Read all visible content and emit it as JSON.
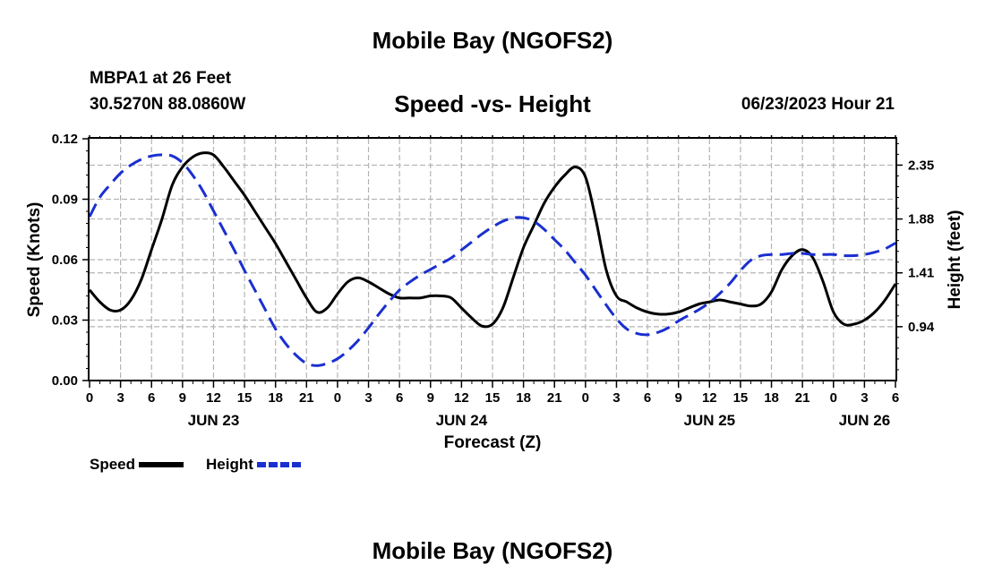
{
  "title_top": "Mobile Bay (NGOFS2)",
  "title_bottom": "Mobile Bay (NGOFS2)",
  "station": "MBPA1 at 26 Feet",
  "coordinates": "30.5270N  88.0860W",
  "subtitle": "Speed -vs- Height",
  "datetime": "06/23/2023 Hour 21",
  "colors": {
    "speed": "#000000",
    "height": "#1a2fd0",
    "grid": "#b4b4b4"
  },
  "legend": [
    {
      "label": "Speed",
      "style": "solid",
      "color": "#000000"
    },
    {
      "label": "Height",
      "style": "dashed",
      "color": "#1a2fd0"
    }
  ],
  "chart_data": {
    "type": "line",
    "xlabel": "Forecast (Z)",
    "ylabel": "Speed (Knots)",
    "y2label": "Height (feet)",
    "x_unit": "hours from 00Z JUN 23",
    "xlim": [
      0,
      78
    ],
    "ylim": [
      0,
      0.12
    ],
    "y2lim": [
      0.47,
      2.58
    ],
    "x_ticks": [
      {
        "x": 0,
        "label": "0"
      },
      {
        "x": 3,
        "label": "3"
      },
      {
        "x": 6,
        "label": "6"
      },
      {
        "x": 9,
        "label": "9"
      },
      {
        "x": 12,
        "label": "12"
      },
      {
        "x": 15,
        "label": "15"
      },
      {
        "x": 18,
        "label": "18"
      },
      {
        "x": 21,
        "label": "21"
      },
      {
        "x": 24,
        "label": "0"
      },
      {
        "x": 27,
        "label": "3"
      },
      {
        "x": 30,
        "label": "6"
      },
      {
        "x": 33,
        "label": "9"
      },
      {
        "x": 36,
        "label": "12"
      },
      {
        "x": 39,
        "label": "15"
      },
      {
        "x": 42,
        "label": "18"
      },
      {
        "x": 45,
        "label": "21"
      },
      {
        "x": 48,
        "label": "0"
      },
      {
        "x": 51,
        "label": "3"
      },
      {
        "x": 54,
        "label": "6"
      },
      {
        "x": 57,
        "label": "9"
      },
      {
        "x": 60,
        "label": "12"
      },
      {
        "x": 63,
        "label": "15"
      },
      {
        "x": 66,
        "label": "18"
      },
      {
        "x": 69,
        "label": "21"
      },
      {
        "x": 72,
        "label": "0"
      },
      {
        "x": 75,
        "label": "3"
      },
      {
        "x": 78,
        "label": "6"
      }
    ],
    "date_labels": [
      {
        "x": 12,
        "label": "JUN 23"
      },
      {
        "x": 36,
        "label": "JUN 24"
      },
      {
        "x": 60,
        "label": "JUN 25"
      },
      {
        "x": 75,
        "label": "JUN 26"
      }
    ],
    "y_ticks": [
      {
        "v": 0,
        "label": "0.00"
      },
      {
        "v": 0.03,
        "label": "0.03"
      },
      {
        "v": 0.06,
        "label": "0.06"
      },
      {
        "v": 0.09,
        "label": "0.09"
      },
      {
        "v": 0.12,
        "label": "0.12"
      }
    ],
    "y2_ticks": [
      {
        "v": 0.94,
        "label": "0.94"
      },
      {
        "v": 1.41,
        "label": "1.41"
      },
      {
        "v": 1.88,
        "label": "1.88"
      },
      {
        "v": 2.35,
        "label": "2.35"
      }
    ],
    "grid": true,
    "series": [
      {
        "name": "Speed",
        "axis": "left",
        "x": [
          0,
          1,
          2,
          3,
          4,
          5,
          6,
          7,
          8,
          9,
          10,
          11,
          12,
          13,
          14,
          15,
          16,
          17,
          18,
          19,
          20,
          21,
          22,
          23,
          24,
          25,
          26,
          27,
          28,
          29,
          30,
          31,
          32,
          33,
          34,
          35,
          36,
          37,
          38,
          39,
          40,
          41,
          42,
          43,
          44,
          45,
          46,
          47,
          48,
          49,
          50,
          51,
          52,
          53,
          54,
          55,
          56,
          57,
          58,
          59,
          60,
          61,
          62,
          63,
          64,
          65,
          66,
          67,
          68,
          69,
          70,
          71,
          72,
          73,
          74,
          75,
          76,
          77,
          78
        ],
        "values": [
          0.045,
          0.039,
          0.035,
          0.035,
          0.04,
          0.05,
          0.065,
          0.08,
          0.097,
          0.106,
          0.111,
          0.113,
          0.112,
          0.106,
          0.099,
          0.092,
          0.084,
          0.076,
          0.068,
          0.059,
          0.05,
          0.041,
          0.034,
          0.036,
          0.043,
          0.049,
          0.051,
          0.049,
          0.046,
          0.043,
          0.041,
          0.041,
          0.041,
          0.042,
          0.042,
          0.041,
          0.036,
          0.031,
          0.027,
          0.028,
          0.036,
          0.051,
          0.066,
          0.077,
          0.088,
          0.096,
          0.102,
          0.106,
          0.101,
          0.08,
          0.055,
          0.042,
          0.039,
          0.036,
          0.034,
          0.033,
          0.033,
          0.034,
          0.036,
          0.038,
          0.039,
          0.04,
          0.039,
          0.038,
          0.037,
          0.038,
          0.044,
          0.055,
          0.062,
          0.065,
          0.061,
          0.049,
          0.034,
          0.028,
          0.028,
          0.03,
          0.034,
          0.04,
          0.048
        ]
      },
      {
        "name": "Height",
        "axis": "right",
        "x": [
          0,
          1,
          2,
          3,
          4,
          5,
          6,
          7,
          8,
          9,
          10,
          11,
          12,
          13,
          14,
          15,
          16,
          17,
          18,
          19,
          20,
          21,
          22,
          23,
          24,
          25,
          26,
          27,
          28,
          29,
          30,
          31,
          32,
          33,
          34,
          35,
          36,
          37,
          38,
          39,
          40,
          41,
          42,
          43,
          44,
          45,
          46,
          47,
          48,
          49,
          50,
          51,
          52,
          53,
          54,
          55,
          56,
          57,
          58,
          59,
          60,
          61,
          62,
          63,
          64,
          65,
          66,
          67,
          68,
          69,
          70,
          71,
          72,
          73,
          74,
          75,
          76,
          77,
          78
        ],
        "values": [
          1.9,
          2.07,
          2.18,
          2.28,
          2.35,
          2.4,
          2.43,
          2.44,
          2.43,
          2.37,
          2.26,
          2.12,
          1.95,
          1.78,
          1.61,
          1.43,
          1.26,
          1.09,
          0.92,
          0.79,
          0.69,
          0.62,
          0.6,
          0.62,
          0.66,
          0.73,
          0.82,
          0.93,
          1.05,
          1.16,
          1.26,
          1.33,
          1.39,
          1.44,
          1.49,
          1.54,
          1.61,
          1.68,
          1.75,
          1.81,
          1.86,
          1.89,
          1.89,
          1.86,
          1.79,
          1.7,
          1.61,
          1.5,
          1.39,
          1.26,
          1.13,
          1.01,
          0.92,
          0.88,
          0.87,
          0.89,
          0.93,
          0.99,
          1.04,
          1.09,
          1.15,
          1.23,
          1.32,
          1.43,
          1.52,
          1.56,
          1.57,
          1.57,
          1.58,
          1.58,
          1.57,
          1.57,
          1.57,
          1.56,
          1.56,
          1.57,
          1.59,
          1.62,
          1.67
        ]
      }
    ]
  }
}
